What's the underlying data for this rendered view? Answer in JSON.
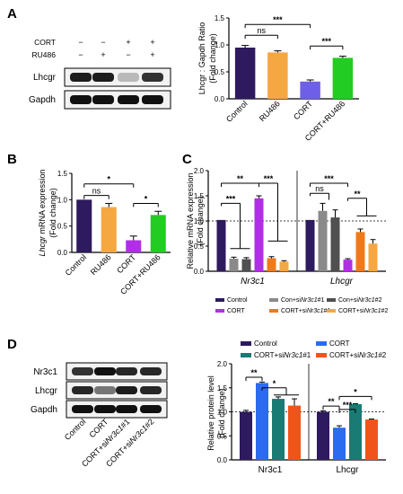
{
  "panels": {
    "A": "A",
    "B": "B",
    "C": "C",
    "D": "D"
  },
  "blotA": {
    "rows": [
      {
        "name": "CORT",
        "signs": [
          "−",
          "−",
          "+",
          "+"
        ]
      },
      {
        "name": "RU486",
        "signs": [
          "−",
          "+",
          "−",
          "+"
        ]
      }
    ],
    "bands": [
      "Lhcgr",
      "Gapdh"
    ]
  },
  "blotD": {
    "bands": [
      "Nr3c1",
      "Lhcgr",
      "Gapdh"
    ],
    "lanes": [
      "Control",
      "CORT",
      "CORT+siNr3c1#1",
      "CORT+siNr3c1#2"
    ]
  },
  "chart_data": [
    {
      "id": "A",
      "type": "bar",
      "ylabel_line1": "Lhcgr : Gapdh Ratio",
      "ylabel_line2": "(Fold change)",
      "ylim": [
        0,
        1.5
      ],
      "yticks": [
        "0.0",
        "0.5",
        "1.0",
        "1.5"
      ],
      "categories": [
        "Control",
        "RU486",
        "CORT",
        "CORT+RU486"
      ],
      "values": [
        0.95,
        0.86,
        0.32,
        0.76
      ],
      "errors": [
        0.04,
        0.03,
        0.03,
        0.03
      ],
      "colors": [
        "#2e1a5e",
        "#f5a742",
        "#6d5fe8",
        "#22cc22"
      ],
      "sig": [
        {
          "text": "ns",
          "pair": [
            0,
            1
          ],
          "y": 1.18
        },
        {
          "text": "***",
          "pair": [
            0,
            2
          ],
          "y": 1.38
        },
        {
          "text": "***",
          "pair": [
            2,
            3
          ],
          "y": 0.98
        }
      ]
    },
    {
      "id": "B",
      "type": "bar",
      "ylabel_italic": "Lhcgr",
      "ylabel_rest": " mRNA expression",
      "ylabel_line2": "(Fold change)",
      "ylim": [
        0,
        1.5
      ],
      "yticks": [
        "0.0",
        "0.5",
        "1.0",
        "1.5"
      ],
      "categories": [
        "Control",
        "RU486",
        "CORT",
        "CORT+RU486"
      ],
      "values": [
        1.0,
        0.86,
        0.23,
        0.71
      ],
      "errors": [
        0.0,
        0.07,
        0.08,
        0.07
      ],
      "colors": [
        "#2e1a5e",
        "#f5a742",
        "#b22ee6",
        "#22cc22"
      ],
      "sig": [
        {
          "text": "ns",
          "pair": [
            0,
            1
          ],
          "y": 1.08
        },
        {
          "text": "*",
          "pair": [
            0,
            2
          ],
          "y": 1.3
        },
        {
          "text": "*",
          "pair": [
            2,
            3
          ],
          "y": 0.93
        }
      ]
    },
    {
      "id": "C",
      "type": "bar",
      "ylabel_line1": "Relative mRNA expression",
      "ylabel_line2": "(Fold change)",
      "ylim": [
        0,
        2.0
      ],
      "yticks": [
        "0.0",
        "0.5",
        "1.0",
        "1.5",
        "2.0"
      ],
      "groups": [
        "Nr3c1",
        "Lhcgr"
      ],
      "series": [
        {
          "name": "Control",
          "color": "#2e1a5e",
          "values": [
            1.02,
            1.02
          ],
          "errors": [
            0.0,
            0.0
          ]
        },
        {
          "name": "Con+siNr3c1#1",
          "color": "#8a8a8a",
          "values": [
            0.25,
            1.2
          ],
          "errors": [
            0.03,
            0.15
          ]
        },
        {
          "name": "Con+siNr3c1#2",
          "color": "#505050",
          "values": [
            0.24,
            1.07
          ],
          "errors": [
            0.03,
            0.15
          ]
        },
        {
          "name": "CORT",
          "color": "#b22ee6",
          "values": [
            1.45,
            0.23
          ],
          "errors": [
            0.05,
            0.02
          ]
        },
        {
          "name": "CORT+siNr3c1#1",
          "color": "#f07a1a",
          "values": [
            0.26,
            0.78
          ],
          "errors": [
            0.03,
            0.06
          ]
        },
        {
          "name": "CORT+siNr3c1#2",
          "color": "#f5a742",
          "values": [
            0.19,
            0.55
          ],
          "errors": [
            0.02,
            0.08
          ]
        }
      ],
      "dashed_ref": 1.0,
      "legend": [
        {
          "text": "Control",
          "italic": ""
        },
        {
          "text": "Con+si",
          "italic": "Nr3c1",
          "suffix": "#1"
        },
        {
          "text": "Con+si",
          "italic": "Nr3c1",
          "suffix": "#2"
        },
        {
          "text": "CORT",
          "italic": ""
        },
        {
          "text": "CORT+si",
          "italic": "Nr3c1",
          "suffix": "#1"
        },
        {
          "text": "CORT+si",
          "italic": "Nr3c1",
          "suffix": "#2"
        }
      ],
      "sig_labels": [
        "**",
        "***",
        "***",
        "ns",
        "***",
        "**"
      ]
    },
    {
      "id": "D",
      "type": "bar",
      "ylabel_line1": "Relative protein level",
      "ylabel_line2": "(Fold change)",
      "ylim": [
        0,
        2.0
      ],
      "yticks": [
        "0.0",
        "0.5",
        "1.0",
        "1.5",
        "2.0"
      ],
      "groups": [
        "Nr3c1",
        "Lhcgr"
      ],
      "series": [
        {
          "name": "Control",
          "color": "#2e1a5e",
          "values": [
            1.0,
            1.0
          ],
          "errors": [
            0.03,
            0.02
          ]
        },
        {
          "name": "CORT",
          "color": "#2b6bf0",
          "values": [
            1.6,
            0.67
          ],
          "errors": [
            0.02,
            0.04
          ]
        },
        {
          "name": "CORT+siNr3c1#1",
          "color": "#1a7b74",
          "values": [
            1.27,
            1.16
          ],
          "errors": [
            0.04,
            0.01
          ]
        },
        {
          "name": "CORT+siNr3c1#2",
          "color": "#f0541a",
          "values": [
            1.13,
            0.84
          ],
          "errors": [
            0.14,
            0.01
          ]
        }
      ],
      "dashed_ref": 1.0,
      "legend": [
        {
          "text": "Control",
          "italic": ""
        },
        {
          "text": "CORT",
          "italic": ""
        },
        {
          "text": "CORT+si",
          "italic": "Nr3c1",
          "suffix": "#1"
        },
        {
          "text": "CORT+si",
          "italic": "Nr3c1",
          "suffix": "#2"
        }
      ],
      "sig_labels": [
        "**",
        "*",
        "**",
        "***",
        "*"
      ]
    }
  ]
}
